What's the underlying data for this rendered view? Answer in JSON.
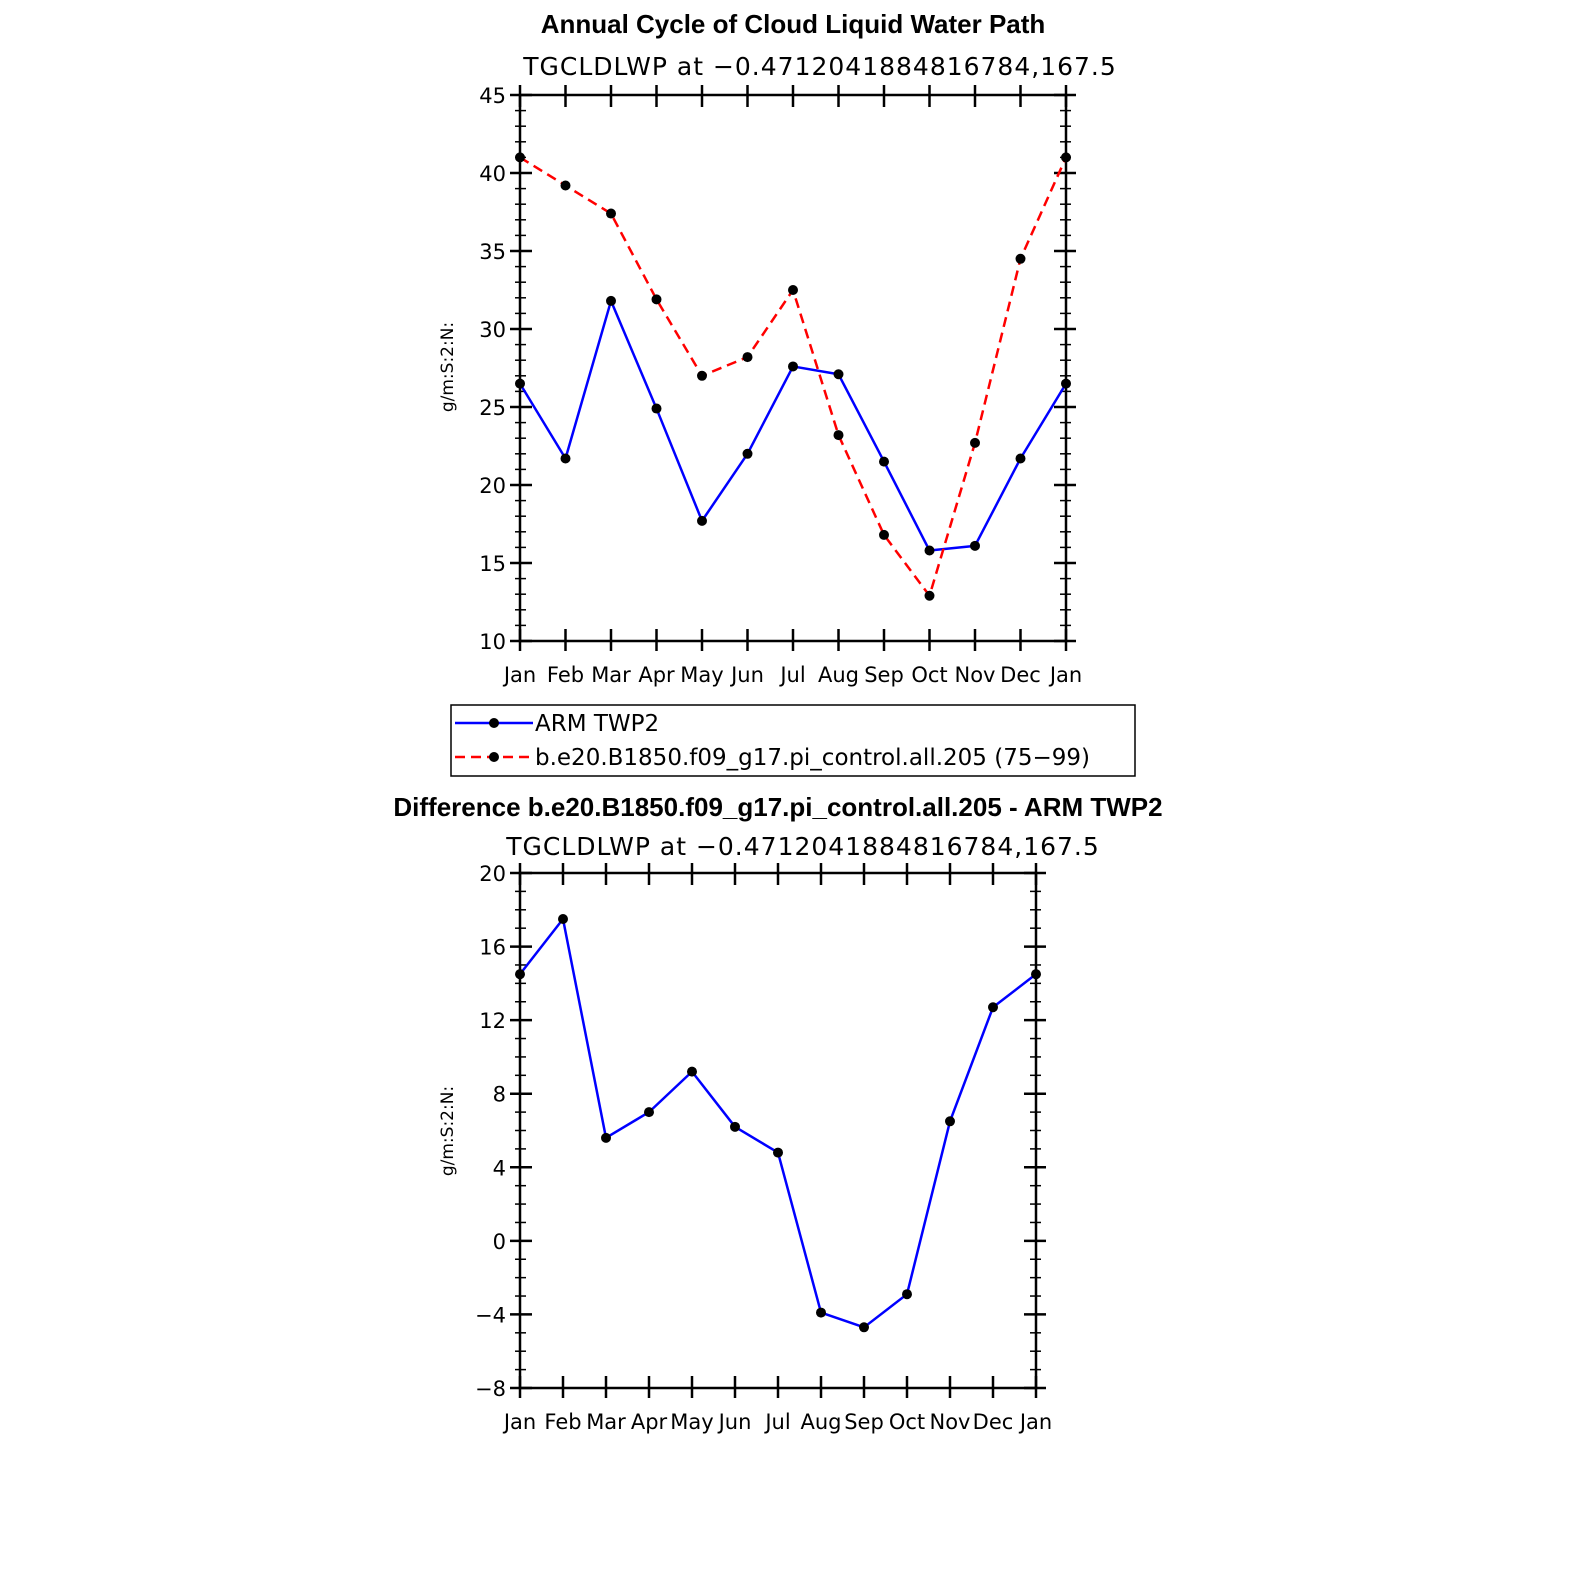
{
  "colors": {
    "series1": "#0000ff",
    "series2": "#ff0000",
    "marker": "#000000"
  },
  "legend": {
    "entries": [
      "ARM TWP2",
      "b.e20.B1850.f09_g17.pi_control.all.205 (75−99)"
    ]
  },
  "chart_data": [
    {
      "type": "line",
      "title": "Annual Cycle of Cloud Liquid Water Path",
      "subtitle": "TGCLDLWP at −0.4712041884816784,167.5",
      "ylabel": "g/m:S:2:N:",
      "categories": [
        "Jan",
        "Feb",
        "Mar",
        "Apr",
        "May",
        "Jun",
        "Jul",
        "Aug",
        "Sep",
        "Oct",
        "Nov",
        "Dec",
        "Jan"
      ],
      "ylim": [
        10,
        45
      ],
      "yticks": [
        "10",
        "15",
        "20",
        "25",
        "30",
        "35",
        "40",
        "45"
      ],
      "grid": false,
      "legend_position": "below",
      "series": [
        {
          "name": "ARM TWP2",
          "style": "solid",
          "values": [
            26.5,
            21.7,
            31.8,
            24.9,
            17.7,
            22.0,
            27.6,
            27.1,
            21.5,
            15.8,
            16.1,
            21.7,
            26.5
          ]
        },
        {
          "name": "b.e20.B1850.f09_g17.pi_control.all.205 (75−99)",
          "style": "dashed",
          "values": [
            41.0,
            39.2,
            37.4,
            31.9,
            27.0,
            28.2,
            32.5,
            23.2,
            16.8,
            12.9,
            22.7,
            34.5,
            41.0
          ]
        }
      ]
    },
    {
      "type": "line",
      "title": "Difference b.e20.B1850.f09_g17.pi_control.all.205 - ARM TWP2",
      "subtitle": "TGCLDLWP at −0.4712041884816784,167.5",
      "ylabel": "g/m:S:2:N:",
      "categories": [
        "Jan",
        "Feb",
        "Mar",
        "Apr",
        "May",
        "Jun",
        "Jul",
        "Aug",
        "Sep",
        "Oct",
        "Nov",
        "Dec",
        "Jan"
      ],
      "ylim": [
        -8,
        20
      ],
      "yticks": [
        "−8",
        "−4",
        "0",
        "4",
        "8",
        "12",
        "16",
        "20"
      ],
      "grid": false,
      "series": [
        {
          "style": "solid",
          "values": [
            14.5,
            17.5,
            5.6,
            7.0,
            9.2,
            6.2,
            4.8,
            -3.9,
            -4.7,
            -2.9,
            6.5,
            12.7,
            14.5
          ]
        }
      ]
    }
  ]
}
